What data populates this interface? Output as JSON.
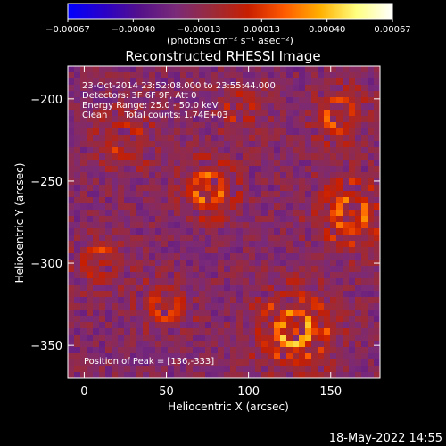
{
  "chart_data": {
    "type": "heatmap",
    "title": "Reconstructed RHESSI Image",
    "xlabel": "Heliocentric X (arcsec)",
    "ylabel": "Heliocentric Y (arcsec)",
    "xlim": [
      -10,
      180
    ],
    "ylim": [
      -370,
      -180
    ],
    "x_ticks": [
      0,
      50,
      100,
      150
    ],
    "y_ticks": [
      -350,
      -300,
      -250,
      -200
    ],
    "x_tick_labels": [
      "0",
      "50",
      "100",
      "150"
    ],
    "y_tick_labels": [
      "−350",
      "−300",
      "−250",
      "−200"
    ],
    "colorbar": {
      "range": [
        -0.00067,
        0.00067
      ],
      "ticks": [
        -0.00067,
        -0.0004,
        -0.00013,
        0.00013,
        0.0004,
        0.00067
      ],
      "tick_labels": [
        "−0.00067",
        "−0.00040",
        "−0.00013",
        "0.00013",
        "0.00040",
        "0.00067"
      ],
      "units": "(photons cm⁻² s⁻¹ asec⁻²)",
      "colormap": [
        "#0000ff",
        "#2a00c8",
        "#55118a",
        "#7a2a78",
        "#9b2a3a",
        "#c81e00",
        "#ff5a00",
        "#ffb000",
        "#ffff80",
        "#ffffff"
      ]
    },
    "annotations": [
      "23-Oct-2014 23:52:08.000 to 23:55:44.000",
      "Detectors: 3F 6F 9F, Att 0",
      "Energy Range: 25.0 - 50.0 keV",
      "Clean      Total counts: 1.74E+03"
    ],
    "peak_label": "Position of Peak = [136,-333]",
    "peak": [
      136,
      -333
    ],
    "sources": [
      {
        "x": 128,
        "y": -340,
        "amp": 1.0,
        "sigma": 16
      },
      {
        "x": 162,
        "y": -270,
        "amp": 0.75,
        "sigma": 15
      },
      {
        "x": 75,
        "y": -255,
        "amp": 0.7,
        "sigma": 13
      },
      {
        "x": 10,
        "y": -300,
        "amp": 0.6,
        "sigma": 11
      },
      {
        "x": 25,
        "y": -225,
        "amp": 0.55,
        "sigma": 12
      },
      {
        "x": 155,
        "y": -210,
        "amp": 0.6,
        "sigma": 12
      },
      {
        "x": 50,
        "y": -325,
        "amp": 0.55,
        "sigma": 11
      },
      {
        "x": 95,
        "y": -205,
        "amp": 0.45,
        "sigma": 10
      }
    ]
  },
  "footer": {
    "timestamp": "18-May-2022 14:55"
  }
}
